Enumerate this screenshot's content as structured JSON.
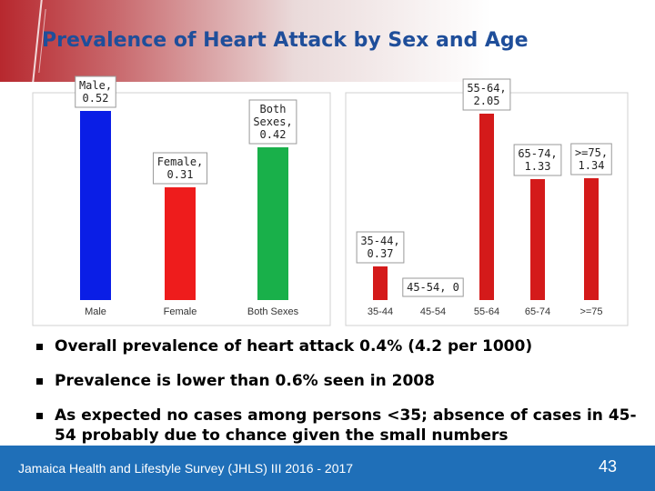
{
  "slide": {
    "title": "Prevalence of Heart Attack by Sex and Age",
    "footer_text": "Jamaica Health and Lifestyle Survey (JHLS) III 2016 - 2017",
    "page_number": "43"
  },
  "bullets": [
    "Overall prevalence of heart attack 0.4% (4.2 per 1000)",
    "Prevalence is lower than 0.6% seen in 2008",
    "As expected no cases among persons <35; absence of cases in 45-54 probably due to chance given the small numbers"
  ],
  "chart_data": [
    {
      "type": "bar",
      "categories": [
        "Male",
        "Female",
        "Both Sexes"
      ],
      "values": [
        0.52,
        0.31,
        0.42
      ],
      "colors": [
        "#0a1ee6",
        "#ee1c1c",
        "#19b04a"
      ],
      "data_labels": [
        [
          "Male,",
          "0.52"
        ],
        [
          "Female,",
          "0.31"
        ],
        [
          "Both",
          "Sexes,",
          "0.42"
        ]
      ],
      "ylim": [
        0,
        0.55
      ],
      "grid": false,
      "legend": "none"
    },
    {
      "type": "bar",
      "categories": [
        "35-44",
        "45-54",
        "55-64",
        "65-74",
        ">=75"
      ],
      "values": [
        0.37,
        0,
        2.05,
        1.33,
        1.34
      ],
      "color": "#d41a1a",
      "data_labels": [
        [
          "35-44,",
          "0.37"
        ],
        [
          "45-54, 0"
        ],
        [
          "55-64,",
          "2.05"
        ],
        [
          "65-74,",
          "1.33"
        ],
        [
          ">=75,",
          "1.34"
        ]
      ],
      "ylim": [
        0,
        2.2
      ],
      "grid": false,
      "legend": "none"
    }
  ]
}
